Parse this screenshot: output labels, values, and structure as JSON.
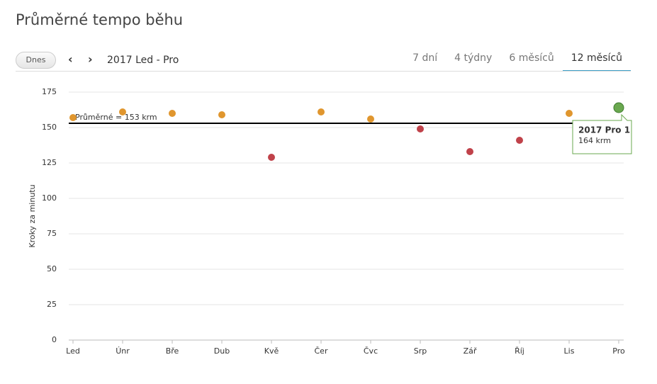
{
  "header": {
    "title": "Průměrné tempo běhu",
    "today_button": "Dnes",
    "range_label": "2017 Led - Pro",
    "tabs": [
      "7 dní",
      "4 týdny",
      "6 měsíců",
      "12 měsíců"
    ],
    "active_tab": 3
  },
  "chart_data": {
    "type": "scatter",
    "y_label": "Kroky za minutu",
    "categories": [
      "Led",
      "Únr",
      "Bře",
      "Dub",
      "Kvě",
      "Čer",
      "Čvc",
      "Srp",
      "Zář",
      "Říj",
      "Lis",
      "Pro"
    ],
    "series": [
      {
        "values": [
          157,
          161,
          160,
          159,
          129,
          161,
          156,
          149,
          133,
          141,
          160,
          164
        ],
        "colors": [
          "#e0962e",
          "#e0962e",
          "#e0962e",
          "#e0962e",
          "#c0424a",
          "#e0962e",
          "#e0962e",
          "#c0424a",
          "#c0424a",
          "#c0424a",
          "#e0962e",
          "#6aa84f"
        ]
      }
    ],
    "ylim": [
      0,
      175
    ],
    "yticks": [
      0,
      25,
      50,
      75,
      100,
      125,
      150,
      175
    ],
    "grid": true,
    "average": {
      "value": 153,
      "label": "Průměrné = 153 krm"
    },
    "tooltip": {
      "index": 11,
      "title": "2017 Pro 1",
      "text": "164 krm"
    }
  }
}
